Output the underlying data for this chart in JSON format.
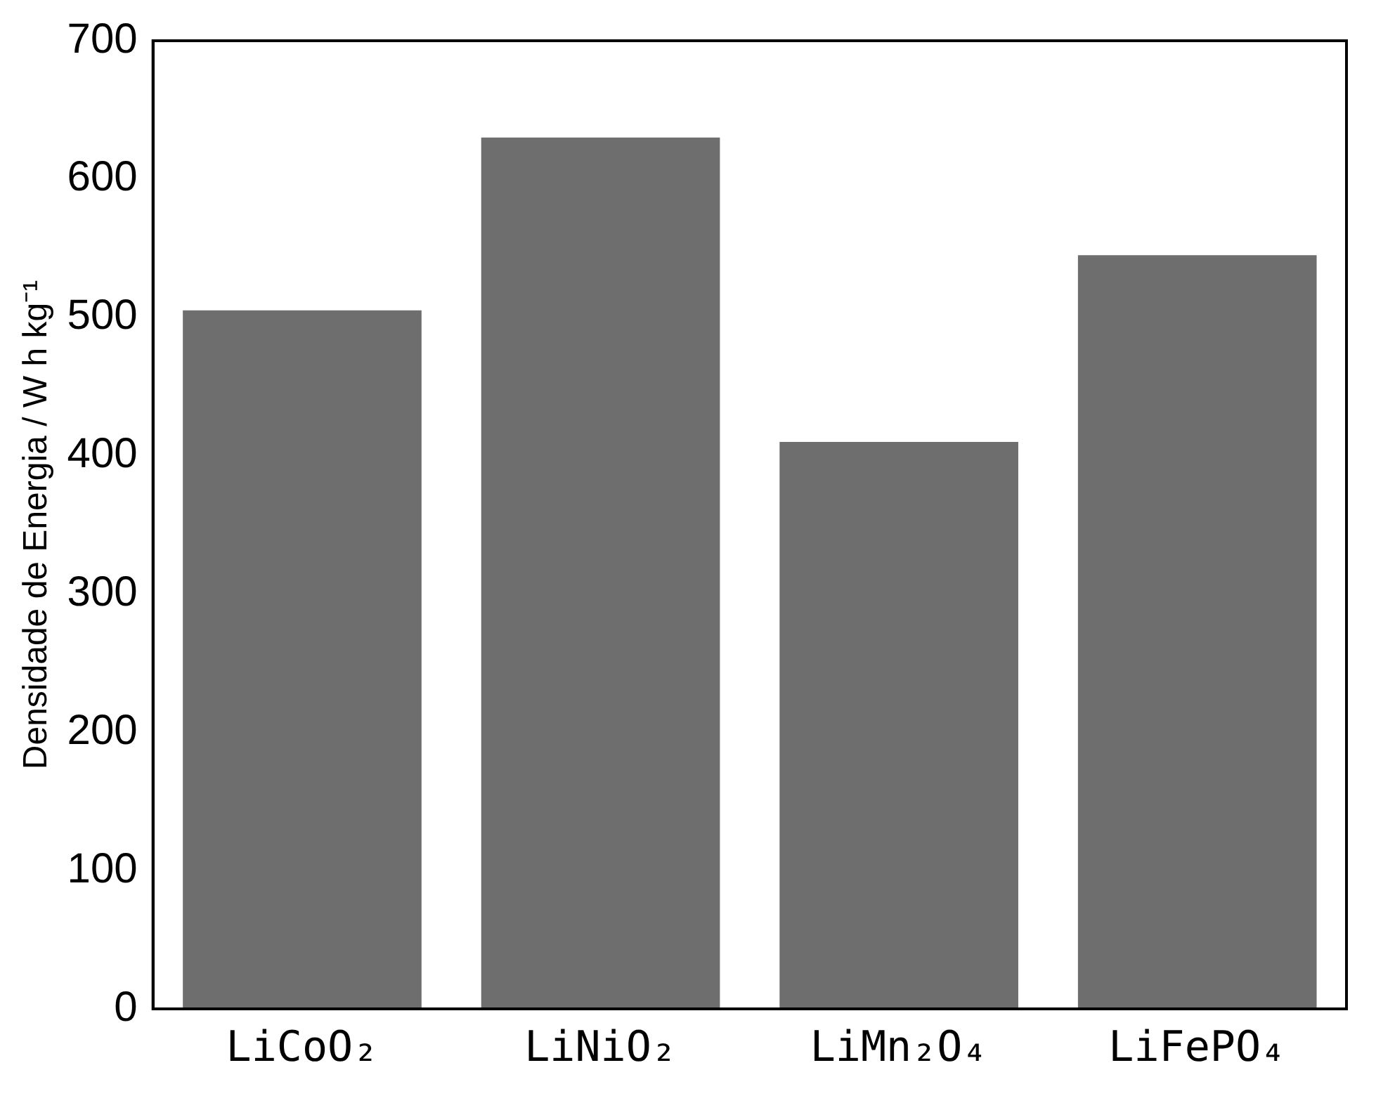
{
  "chart_data": {
    "type": "bar",
    "ylabel": "Densidade de Energia / W h kg⁻¹",
    "categories": [
      "LiCoO₂",
      "LiNiO₂",
      "LiMn₂O₄",
      "LiFePO₄"
    ],
    "values": [
      505,
      630,
      410,
      545
    ],
    "color": "#6e6e6e",
    "ylim": [
      0,
      700
    ],
    "yticks": [
      0,
      100,
      200,
      300,
      400,
      500,
      600,
      700
    ],
    "grid": false
  }
}
